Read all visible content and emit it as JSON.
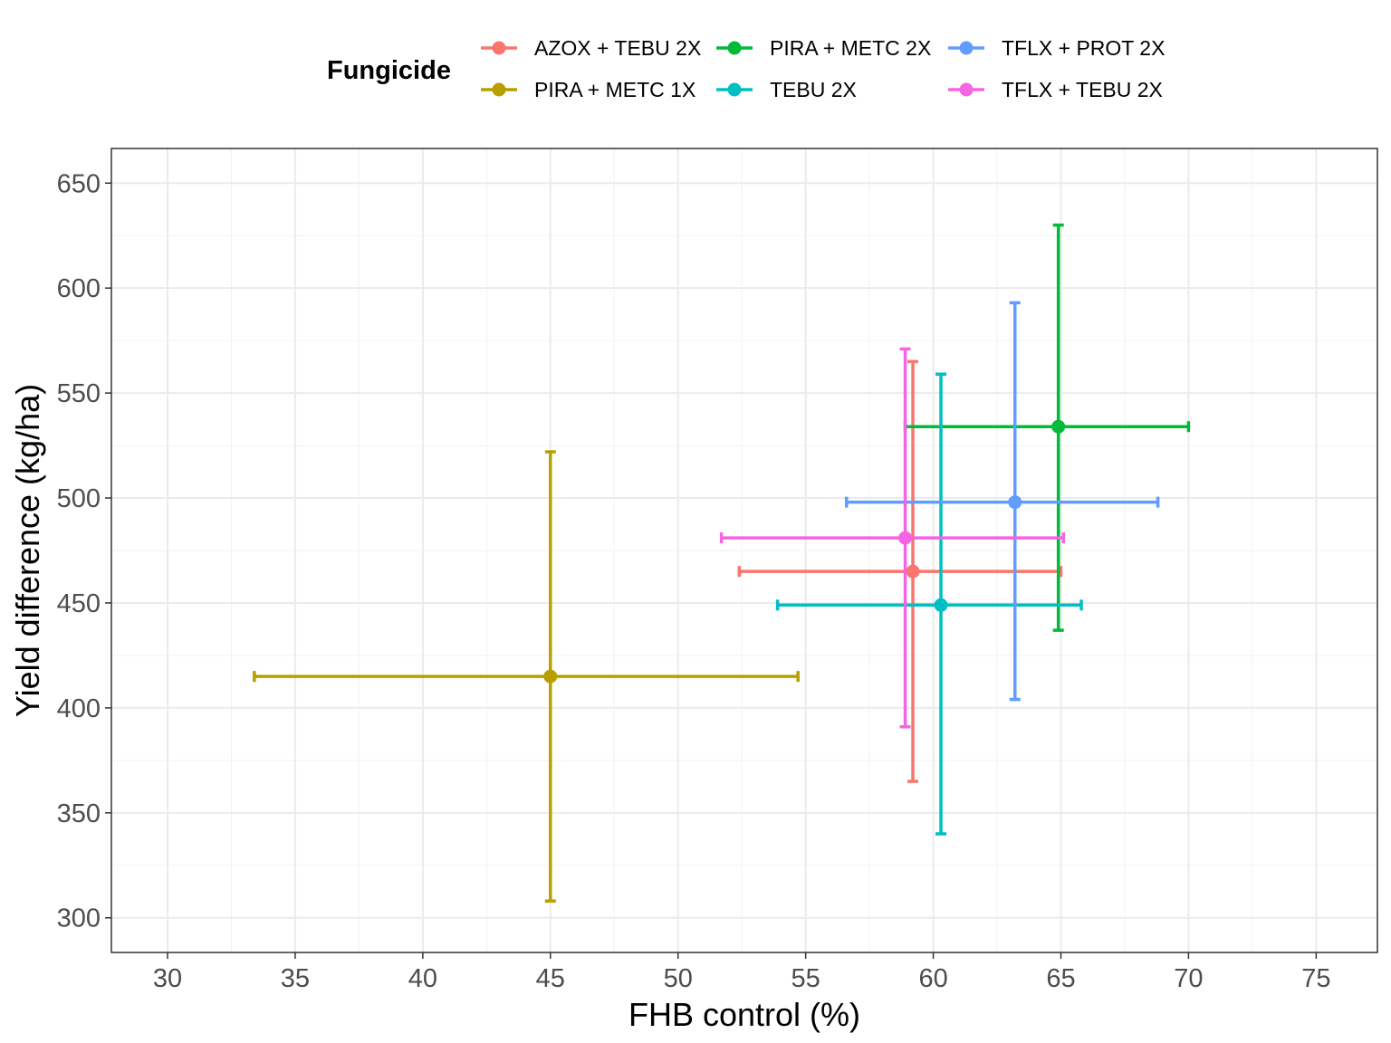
{
  "legend": {
    "title": "Fungicide"
  },
  "chart_data": {
    "type": "scatter",
    "xlabel": "FHB control (%)",
    "ylabel": "Yield difference (kg/ha)",
    "xlim": [
      27.8,
      77.4
    ],
    "ylim": [
      283.5,
      666.5
    ],
    "xticks": [
      30,
      35,
      40,
      45,
      50,
      55,
      60,
      65,
      70,
      75
    ],
    "yticks": [
      300,
      350,
      400,
      450,
      500,
      550,
      600,
      650
    ],
    "grid": true,
    "legend_position": "top",
    "series": [
      {
        "name": "AZOX + TEBU 2X",
        "color": "#F8766D",
        "x": 59.2,
        "y": 465,
        "xerr": [
          52.4,
          65.0
        ],
        "yerr": [
          365,
          565
        ]
      },
      {
        "name": "PIRA + METC 1X",
        "color": "#B79F00",
        "x": 45.0,
        "y": 415,
        "xerr": [
          33.4,
          54.7
        ],
        "yerr": [
          308,
          522
        ]
      },
      {
        "name": "PIRA + METC 2X",
        "color": "#00BA38",
        "x": 64.9,
        "y": 534,
        "xerr": [
          58.9,
          70.0
        ],
        "yerr": [
          437,
          630
        ]
      },
      {
        "name": "TEBU 2X",
        "color": "#00BFC4",
        "x": 60.3,
        "y": 449,
        "xerr": [
          53.9,
          65.8
        ],
        "yerr": [
          340,
          559
        ]
      },
      {
        "name": "TFLX + PROT 2X",
        "color": "#619CFF",
        "x": 63.2,
        "y": 498,
        "xerr": [
          56.6,
          68.8
        ],
        "yerr": [
          404,
          593
        ]
      },
      {
        "name": "TFLX + TEBU 2X",
        "color": "#F564E3",
        "x": 58.9,
        "y": 481,
        "xerr": [
          51.7,
          65.1
        ],
        "yerr": [
          391,
          571
        ]
      }
    ]
  }
}
